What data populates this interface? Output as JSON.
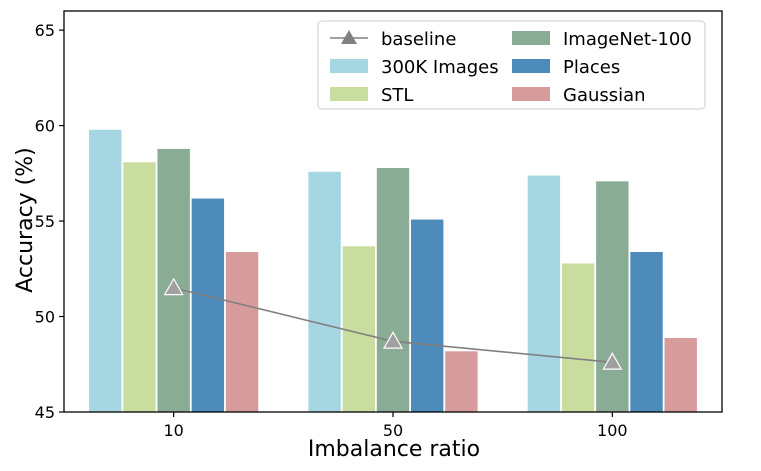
{
  "chart_data": {
    "type": "bar",
    "xlabel": "Imbalance ratio",
    "ylabel": "Accuracy (%)",
    "ylim": [
      45,
      66
    ],
    "yticks": [
      45,
      50,
      55,
      60,
      65
    ],
    "categories": [
      "10",
      "50",
      "100"
    ],
    "series": [
      {
        "name": "300K Images",
        "color": "#a5d6e2",
        "values": [
          59.8,
          57.6,
          57.4
        ]
      },
      {
        "name": "STL",
        "color": "#c9dda0",
        "values": [
          58.1,
          53.7,
          52.8
        ]
      },
      {
        "name": "ImageNet-100",
        "color": "#8aab94",
        "values": [
          58.8,
          57.8,
          57.1
        ]
      },
      {
        "name": "Places",
        "color": "#4d8cba",
        "values": [
          56.2,
          55.1,
          53.4
        ]
      },
      {
        "name": "Gaussian",
        "color": "#d79b9c",
        "values": [
          53.4,
          48.2,
          48.9
        ]
      }
    ],
    "baseline": {
      "name": "baseline",
      "color": "#808080",
      "values": [
        51.5,
        48.7,
        47.6
      ]
    },
    "legend": {
      "placement": "top-right",
      "entries": [
        "baseline",
        "ImageNet-100",
        "300K Images",
        "Places",
        "STL",
        "Gaussian"
      ]
    }
  }
}
